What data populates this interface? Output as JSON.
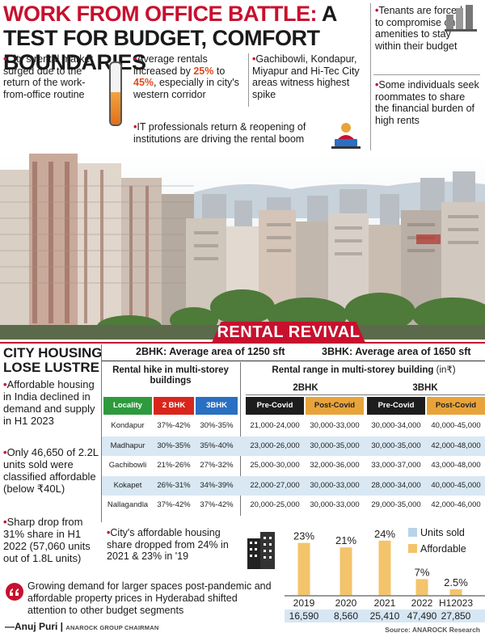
{
  "headline": {
    "red": "WORK FROM OFFICE BATTLE:",
    "rest": " A TEST FOR BUDGET, COMFORT BOUNDARIES"
  },
  "top_bullets": {
    "b1": "City's rental market surged due to the return of the work-from-office routine",
    "b2_pre": "Average rentals increased by ",
    "b2_p1": "25%",
    "b2_mid": " to ",
    "b2_p2": "45%",
    "b2_post": ", especially in city's western corridor",
    "b3": "Gachibowli, Kondapur, Miyapur and Hi-Tec City areas witness highest spike",
    "b4": "IT professionals return & reopening of institutions are driving the rental boom",
    "b5": "Tenants are forced to compromise on amenities to stay within their budget",
    "b6": "Some individuals seek roommates to share the financial burden of high rents"
  },
  "banner": {
    "title": "RENTAL REVIVAL"
  },
  "left": {
    "title": "CITY HOUSING LOSE LUSTRE",
    "b1": "Affordable housing in India declined in demand and supply in H1 2023",
    "b2": "Only 46,650 of 2.2L units sold were classified affordable (below ₹40L)",
    "b3": "Sharp drop from 31% share in H1 2022 (57,060 units out of 1.8L units)"
  },
  "table": {
    "area_2bhk": "2BHK: Average area of 1250 sft",
    "area_3bhk": "3BHK: Average area of 1650 sft",
    "hike_title": "Rental hike in multi-storey buildings",
    "range_title": "Rental range in multi-storey building",
    "range_unit": "(in₹)",
    "group_2bhk": "2BHK",
    "group_3bhk": "3BHK",
    "columns": [
      "Locality",
      "2 BHK",
      "3BHK",
      "Pre-Covid",
      "Post-Covid",
      "Pre-Covid",
      "Post-Covid"
    ],
    "rows": [
      [
        "Kondapur",
        "37%-42%",
        "30%-35%",
        "21,000-24,000",
        "30,000-33,000",
        "30,000-34,000",
        "40,000-45,000"
      ],
      [
        "Madhapur",
        "30%-35%",
        "35%-40%",
        "23,000-26,000",
        "30,000-35,000",
        "30,000-35,000",
        "42,000-48,000"
      ],
      [
        "Gachibowli",
        "21%-26%",
        "27%-32%",
        "25,000-30,000",
        "32,000-36,000",
        "33,000-37,000",
        "43,000-48,000"
      ],
      [
        "Kokapet",
        "26%-31%",
        "34%-39%",
        "22,000-27,000",
        "30,000-33,000",
        "28,000-34,000",
        "40,000-45,000"
      ],
      [
        "Nallagandla",
        "37%-42%",
        "37%-42%",
        "20,000-25,000",
        "30,000-33,000",
        "29,000-35,000",
        "42,000-46,000"
      ]
    ],
    "colors": {
      "locality": "#2e9a3e",
      "bhk2": "#d9261c",
      "bhk3": "#2a6fc2",
      "pre": "#1d1d1d",
      "post": "#e8a43a",
      "alt_row": "#d9e8f3"
    }
  },
  "mid_bullet": "City's affordable housing share dropped from 24% in 2021 & 23% in '19",
  "quote": {
    "text": "Growing demand for larger spaces post-pandemic and affordable property prices in Hyderabad shifted attention to other budget segments",
    "author": "—Anuj Puri",
    "role": "ANAROCK GROUP CHAIRMAN"
  },
  "chart_data": {
    "type": "bar",
    "categories": [
      "2019",
      "2020",
      "2021",
      "2022",
      "H12023"
    ],
    "series": [
      {
        "name": "Affordable",
        "values": [
          23,
          21,
          24,
          7,
          2.5
        ],
        "labels": [
          "23%",
          "21%",
          "24%",
          "7%",
          "2.5%"
        ]
      }
    ],
    "units_sold": [
      "16,590",
      "8,560",
      "25,410",
      "47,490",
      "27,850"
    ],
    "legend": [
      "Units sold",
      "Affordable"
    ],
    "legend_colors": {
      "units_sold": "#b7d3ea",
      "affordable": "#f3c46b"
    },
    "source": "Source: ANAROCK Research"
  }
}
